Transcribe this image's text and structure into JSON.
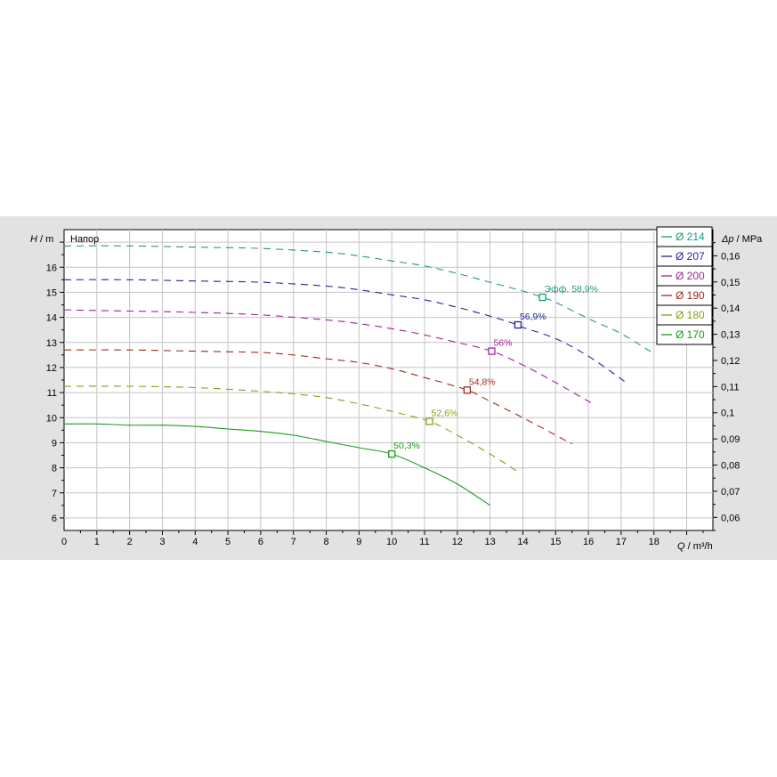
{
  "chart_data": {
    "type": "line",
    "title": "Напор",
    "xlabel": "Q",
    "xunit": "m³/h",
    "ylabel": "H",
    "yunit": "m",
    "y2label": "Δp",
    "y2unit": "MPa",
    "xlim": [
      0,
      19.8
    ],
    "ylim": [
      5.5,
      17.5
    ],
    "y2lim": [
      0.055,
      0.17
    ],
    "xticks": [
      "0",
      "1",
      "2",
      "3",
      "4",
      "5",
      "6",
      "7",
      "8",
      "9",
      "10",
      "11",
      "12",
      "13",
      "14",
      "15",
      "16",
      "17",
      "18"
    ],
    "yticks": [
      "6",
      "7",
      "8",
      "9",
      "10",
      "11",
      "12",
      "13",
      "14",
      "15",
      "16"
    ],
    "y2ticks": [
      "0,06",
      "0,07",
      "0,08",
      "0,09",
      "0,1",
      "0,11",
      "0,12",
      "0,13",
      "0,14",
      "0,15",
      "0,16"
    ],
    "grid": true,
    "legend_position": "top-right",
    "series": [
      {
        "name": "Ø 214",
        "color": "#1a9a82",
        "x": [
          0,
          2,
          4,
          6,
          8,
          9,
          10,
          11,
          12,
          13,
          14,
          14.6,
          15,
          16,
          17,
          18
        ],
        "y": [
          16.85,
          16.85,
          16.8,
          16.75,
          16.6,
          16.45,
          16.25,
          16.05,
          15.75,
          15.4,
          15.05,
          14.8,
          14.6,
          13.95,
          13.35,
          12.55
        ],
        "point": {
          "x": 14.6,
          "y": 14.8,
          "label": "Эфф.   58,9%"
        }
      },
      {
        "name": "Ø 207",
        "color": "#2424a0",
        "x": [
          0,
          2,
          4,
          6,
          8,
          9,
          10,
          11,
          12,
          13,
          13.85,
          14,
          15,
          16,
          17.1
        ],
        "y": [
          15.5,
          15.5,
          15.45,
          15.4,
          15.25,
          15.1,
          14.9,
          14.7,
          14.4,
          14.05,
          13.7,
          13.6,
          13.15,
          12.45,
          11.45
        ],
        "point": {
          "x": 13.85,
          "y": 13.7,
          "label": "56,9%"
        }
      },
      {
        "name": "Ø 200",
        "color": "#a0249a",
        "x": [
          0,
          2,
          4,
          6,
          8,
          9,
          10,
          11,
          12,
          13.05,
          14,
          15,
          16.2
        ],
        "y": [
          14.3,
          14.25,
          14.2,
          14.1,
          13.9,
          13.75,
          13.55,
          13.3,
          13.0,
          12.65,
          12.1,
          11.4,
          10.5
        ],
        "point": {
          "x": 13.05,
          "y": 12.65,
          "label": "56%"
        }
      },
      {
        "name": "Ø 190",
        "color": "#a02a20",
        "x": [
          0,
          2,
          4,
          6,
          7,
          8,
          9,
          10,
          11,
          12.3,
          13,
          14,
          15.5
        ],
        "y": [
          12.7,
          12.7,
          12.65,
          12.6,
          12.5,
          12.35,
          12.2,
          11.95,
          11.6,
          11.1,
          10.65,
          10.0,
          8.95
        ],
        "point": {
          "x": 12.3,
          "y": 11.1,
          "label": "54,8%"
        }
      },
      {
        "name": "Ø 180",
        "color": "#8a9e1a",
        "x": [
          0,
          2,
          4,
          6,
          7,
          8,
          9,
          10,
          11.15,
          12,
          13,
          13.9
        ],
        "y": [
          11.25,
          11.25,
          11.2,
          11.05,
          10.95,
          10.8,
          10.55,
          10.25,
          9.85,
          9.3,
          8.55,
          7.8
        ],
        "point": {
          "x": 11.15,
          "y": 9.85,
          "label": "52,6%"
        }
      },
      {
        "name": "Ø 170",
        "color": "#1e9a1e",
        "x": [
          0,
          1,
          2,
          3,
          4,
          5,
          6,
          7,
          8,
          9,
          10,
          11,
          12,
          13
        ],
        "y": [
          9.75,
          9.75,
          9.7,
          9.7,
          9.65,
          9.55,
          9.45,
          9.3,
          9.05,
          8.8,
          8.55,
          8.0,
          7.35,
          6.5
        ],
        "point": {
          "x": 10.0,
          "y": 8.55,
          "label": "50,3%"
        }
      }
    ]
  }
}
